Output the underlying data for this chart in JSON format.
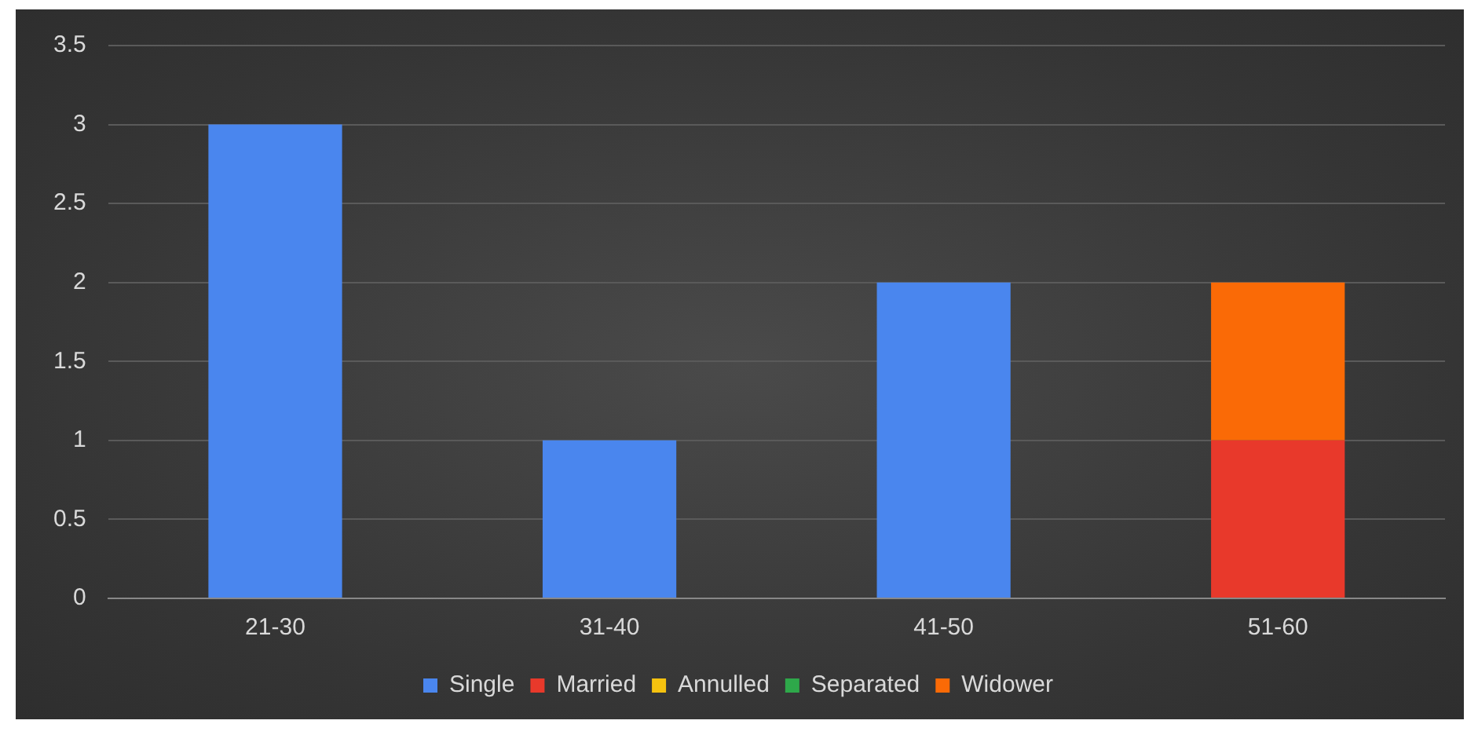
{
  "chart_data": {
    "type": "bar",
    "stacked": true,
    "categories": [
      "21-30",
      "31-40",
      "41-50",
      "51-60"
    ],
    "series": [
      {
        "name": "Single",
        "color": "#4a86ee",
        "values": [
          3,
          1,
          2,
          0
        ]
      },
      {
        "name": "Married",
        "color": "#e8392b",
        "values": [
          0,
          0,
          0,
          1
        ]
      },
      {
        "name": "Annulled",
        "color": "#f5c20f",
        "values": [
          0,
          0,
          0,
          0
        ]
      },
      {
        "name": "Separated",
        "color": "#2ea84a",
        "values": [
          0,
          0,
          0,
          0
        ]
      },
      {
        "name": "Widower",
        "color": "#fa6a06",
        "values": [
          0,
          0,
          0,
          1
        ]
      }
    ],
    "ylim": [
      0,
      3.5
    ],
    "yticks": [
      0,
      0.5,
      1,
      1.5,
      2,
      2.5,
      3,
      3.5
    ],
    "grid": "y",
    "legend": "bottom"
  }
}
